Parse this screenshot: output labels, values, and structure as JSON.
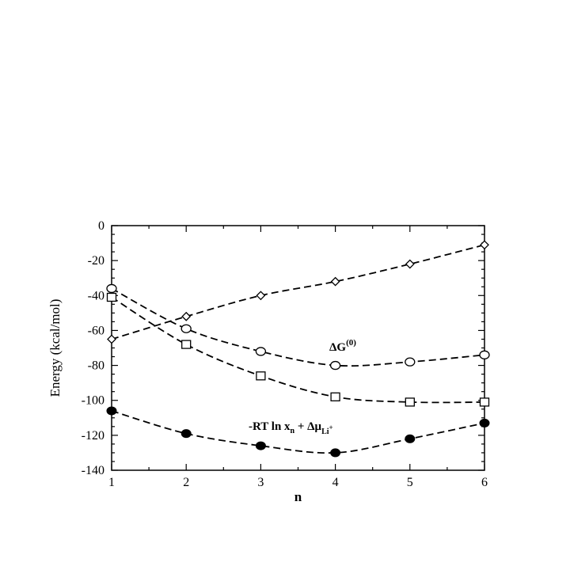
{
  "chart_data": {
    "type": "line",
    "xlabel": "n",
    "ylabel": "Energy (kcal/mol)",
    "xlim": [
      1,
      6
    ],
    "ylim": [
      -140,
      0
    ],
    "x": [
      1,
      2,
      3,
      4,
      5,
      6
    ],
    "xticks": [
      "1",
      "2",
      "3",
      "4",
      "5",
      "6"
    ],
    "yticks": [
      "0",
      "-20",
      "-40",
      "-60",
      "-80",
      "-100",
      "-120",
      "-140"
    ],
    "grid": false,
    "series": [
      {
        "marker": "diamond-open",
        "values": [
          -65,
          -52,
          -40,
          -32,
          -22,
          -11
        ]
      },
      {
        "marker": "circle-open",
        "values": [
          -36,
          -59,
          -72,
          -80,
          -78,
          -74
        ]
      },
      {
        "marker": "square-open",
        "values": [
          -41,
          -68,
          -86,
          -98,
          -101,
          -101
        ]
      },
      {
        "marker": "circle-filled",
        "values": [
          -106,
          -119,
          -126,
          -130,
          -122,
          -113
        ]
      }
    ],
    "annotations": {
      "delta_g": {
        "main": "ΔG",
        "sup": "(0)"
      },
      "rt_expr": {
        "main": "-RT ln x",
        "sub_n": "n",
        "plus": " + Δμ",
        "sub_li": "Li",
        "sup_plus": "+"
      }
    }
  }
}
